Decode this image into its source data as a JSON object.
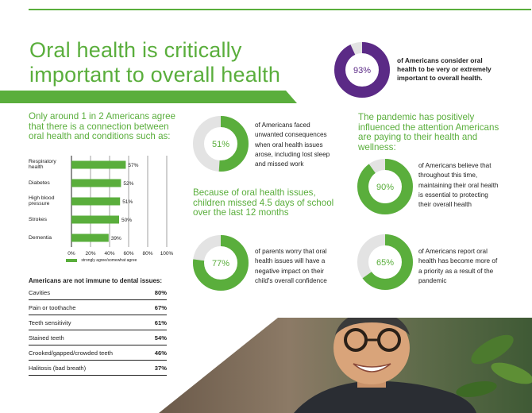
{
  "title": {
    "line1": "Oral health is critically",
    "line2": "important to overall health"
  },
  "hero_stat": {
    "percent": 93,
    "label": "93%",
    "text": "of Americans consider oral health to be very or extremely important to overall health."
  },
  "connection": {
    "intro": "Only around 1 in 2 Americans agree that there is a connection between oral health and conditions such as:",
    "chart_data": {
      "type": "bar",
      "orientation": "horizontal",
      "categories": [
        "Respiratory health",
        "Diabetes",
        "High blood pressure",
        "Strokes",
        "Dementia"
      ],
      "values": [
        57,
        52,
        51,
        50,
        39
      ],
      "value_labels": [
        "57%",
        "52%",
        "51%",
        "50%",
        "39%"
      ],
      "ticks": [
        "0%",
        "20%",
        "40%",
        "60%",
        "80%",
        "100%"
      ],
      "xlim": [
        0,
        100
      ],
      "legend": "strongly agree/somewhat agree",
      "color": "#5aae3c"
    }
  },
  "dental_issues": {
    "heading": "Americans are not immune to dental issues:",
    "rows": [
      {
        "label": "Cavities",
        "value": "80%"
      },
      {
        "label": "Pain or toothache",
        "value": "67%"
      },
      {
        "label": "Teeth sensitivity",
        "value": "61%"
      },
      {
        "label": "Stained teeth",
        "value": "54%"
      },
      {
        "label": "Crooked/gapped/crowded teeth",
        "value": "46%"
      },
      {
        "label": "Halitosis (bad breath)",
        "value": "37%"
      }
    ]
  },
  "stat_51": {
    "percent": 51,
    "label": "51%",
    "text": "of Americans faced unwanted consequences when oral health issues arose, including lost sleep and missed work"
  },
  "school": {
    "heading": "Because of oral health issues, children missed 4.5 days of school over the last 12 months"
  },
  "stat_77": {
    "percent": 77,
    "label": "77%",
    "text": "of parents worry that oral health issues will have a negative impact on their child's overall confidence"
  },
  "pandemic": {
    "heading": "The pandemic has positively influenced the attention Americans are paying to their health and wellness:"
  },
  "stat_90": {
    "percent": 90,
    "label": "90%",
    "text": "of Americans believe that throughout this time, maintaining their oral health is essential to protecting their overall health"
  },
  "stat_65": {
    "percent": 65,
    "label": "65%",
    "text": "of Americans report oral health has become more of a priority as a result of the pandemic"
  },
  "colors": {
    "green": "#5aae3c",
    "purple": "#5b2a86",
    "track": "#e3e3e3"
  }
}
